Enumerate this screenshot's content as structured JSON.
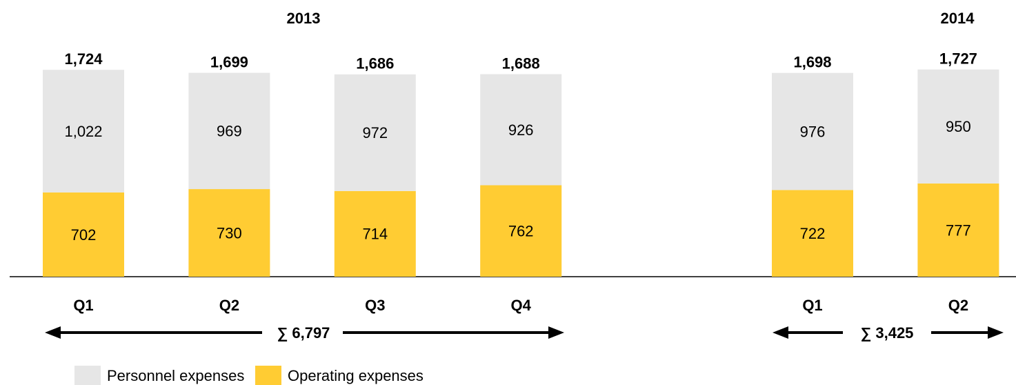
{
  "chart_data": {
    "type": "stacked_bar",
    "groups": [
      {
        "name": "2013",
        "sum": 6797,
        "sum_label": "∑ 6,797"
      },
      {
        "name": "2014",
        "sum": 3425,
        "sum_label": "∑ 3,425"
      }
    ],
    "categories": [
      "Q1",
      "Q2",
      "Q3",
      "Q4",
      "Q1",
      "Q2"
    ],
    "series": [
      {
        "name": "Operating expenses",
        "color": "#ffcc33",
        "values": [
          702,
          730,
          714,
          762,
          722,
          777
        ]
      },
      {
        "name": "Personnel expenses",
        "color": "#e6e6e6",
        "values": [
          1022,
          969,
          972,
          926,
          976,
          950
        ],
        "value_labels": [
          "1,022",
          "969",
          "972",
          "926",
          "976",
          "950"
        ]
      }
    ],
    "totals": [
      1724,
      1699,
      1686,
      1688,
      1698,
      1727
    ],
    "total_labels": [
      "1,724",
      "1,699",
      "1,686",
      "1,688",
      "1,698",
      "1,727"
    ],
    "ylim": [
      0,
      1800
    ]
  }
}
